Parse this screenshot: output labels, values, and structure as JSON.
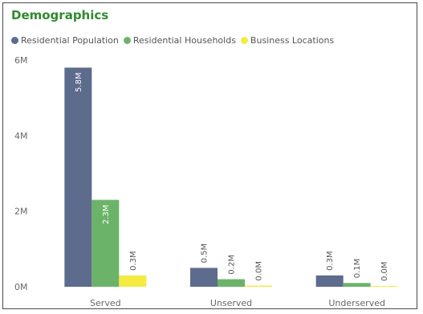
{
  "title": "Demographics",
  "chart_data": {
    "type": "bar",
    "categories": [
      "Served",
      "Unserved",
      "Underserved"
    ],
    "series": [
      {
        "name": "Residential Population",
        "color": "#5d6b8c",
        "values": [
          5.8,
          0.5,
          0.3
        ],
        "labels": [
          "5.8M",
          "0.5M",
          "0.3M"
        ]
      },
      {
        "name": "Residential Households",
        "color": "#6cb36a",
        "values": [
          2.3,
          0.2,
          0.1
        ],
        "labels": [
          "2.3M",
          "0.2M",
          "0.1M"
        ]
      },
      {
        "name": "Business Locations",
        "color": "#f5ea42",
        "values": [
          0.3,
          0.03,
          0.02
        ],
        "labels": [
          "0.3M",
          "0.0M",
          "0.0M"
        ]
      }
    ],
    "yticks": [
      {
        "value": 0,
        "label": "0M"
      },
      {
        "value": 2,
        "label": "2M"
      },
      {
        "value": 4,
        "label": "4M"
      },
      {
        "value": 6,
        "label": "6M"
      }
    ],
    "ylim": [
      0,
      6
    ],
    "legend_position": "top-left",
    "grid": false
  }
}
